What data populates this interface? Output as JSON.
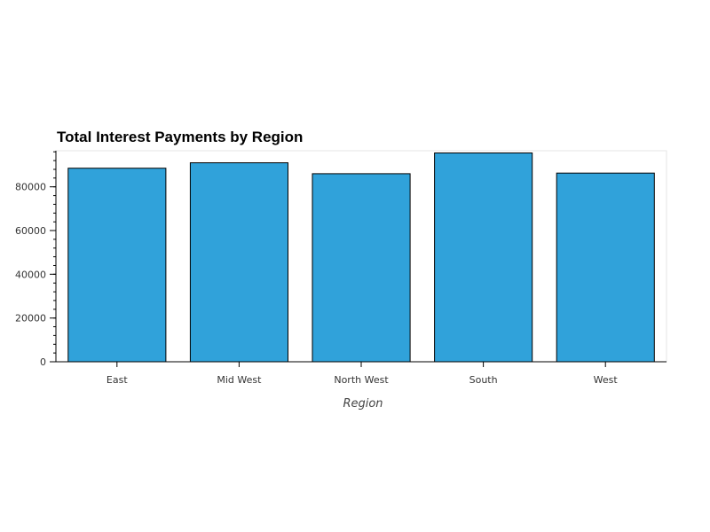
{
  "chart_data": {
    "type": "bar",
    "title": "Total Interest Payments by Region",
    "xlabel": "Region",
    "ylabel": "",
    "categories": [
      "East",
      "Mid West",
      "North West",
      "South",
      "West"
    ],
    "values": [
      88500,
      91000,
      86000,
      95500,
      86300
    ],
    "ylim": [
      0,
      96500
    ],
    "yticks": [
      0,
      20000,
      40000,
      60000,
      80000
    ],
    "ytick_labels": [
      "0",
      "20000",
      "40000",
      "60000",
      "80000"
    ],
    "grid": false,
    "bar_color": "#30a2da",
    "bar_edge_color": "#000000"
  }
}
